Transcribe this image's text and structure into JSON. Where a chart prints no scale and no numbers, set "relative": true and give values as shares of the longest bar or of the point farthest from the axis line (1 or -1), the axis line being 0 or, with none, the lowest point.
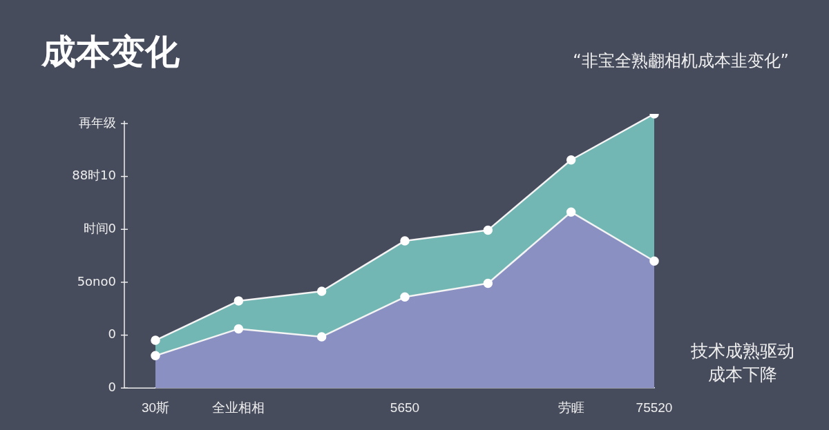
{
  "chart_data": {
    "type": "area",
    "title": "成本变化",
    "subtitle": "“非宝全熟䎘相机成本韭变化”",
    "categories": [
      "30斯",
      "全业相相",
      null,
      "5650",
      null,
      "劳睚",
      "75520"
    ],
    "stacked": true,
    "relative": true,
    "grid": false,
    "legend": false,
    "marker": "circle",
    "series": [
      {
        "color": "#8a90c2",
        "values": [
          0.118,
          0.216,
          0.187,
          0.332,
          0.382,
          0.642,
          0.463
        ]
      },
      {
        "color": "#72b7b3",
        "values": [
          0.056,
          0.102,
          0.166,
          0.205,
          0.194,
          0.19,
          0.537
        ]
      }
    ],
    "annotations": [
      "技术成熟驱动",
      "成本下降",
      "再年级",
      "88时10",
      "时间0",
      "5ono0",
      "0",
      "0"
    ]
  }
}
